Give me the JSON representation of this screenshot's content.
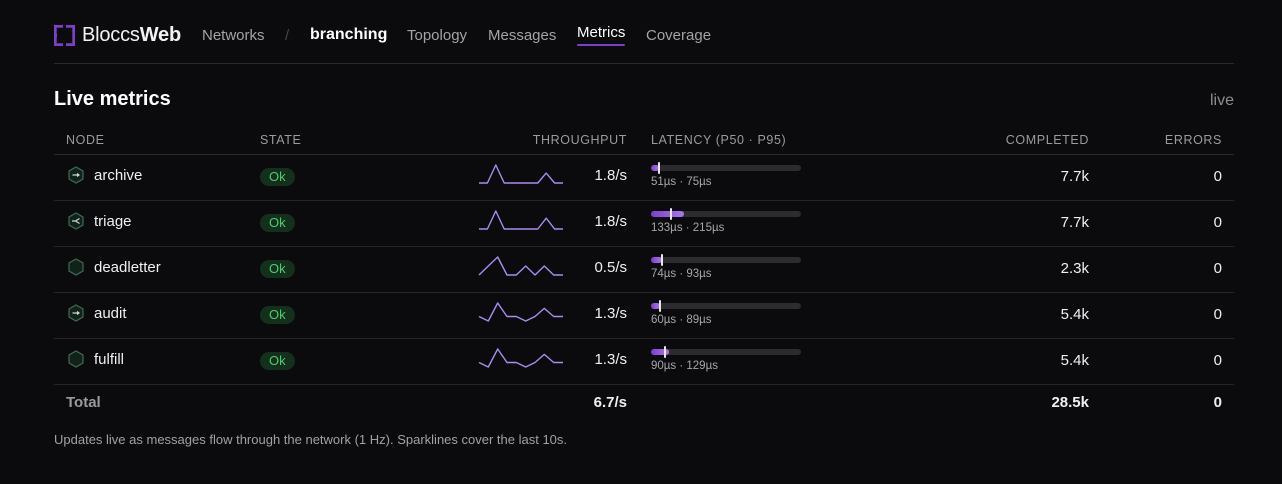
{
  "header": {
    "logo_part1": "Bloccs",
    "logo_part2": "Web",
    "nav": {
      "networks": "Networks",
      "separator": "/",
      "current": "branching",
      "topology": "Topology",
      "messages": "Messages",
      "metrics": "Metrics",
      "coverage": "Coverage"
    },
    "active_tab": "Metrics"
  },
  "section": {
    "title": "Live metrics",
    "status": "live"
  },
  "table": {
    "columns": [
      "NODE",
      "STATE",
      "THROUGHPUT",
      "LATENCY (P50 · P95)",
      "COMPLETED",
      "ERRORS"
    ],
    "rows": [
      {
        "node": "archive",
        "icon": "sink-hex-icon",
        "state": "Ok",
        "throughput": "1.8/s",
        "spark": [
          0,
          0,
          1,
          0,
          0,
          0,
          0,
          0,
          0.55,
          0,
          0
        ],
        "p50_fraction": 0.053,
        "p95_fraction": 0.053,
        "latency": "51µs · 75µs",
        "completed": "7.7k",
        "errors": "0"
      },
      {
        "node": "triage",
        "icon": "router-hex-icon",
        "state": "Ok",
        "throughput": "1.8/s",
        "spark": [
          0,
          0,
          1,
          0,
          0,
          0,
          0,
          0,
          0.6,
          0,
          0
        ],
        "p50_fraction": 0.133,
        "p95_fraction": 0.22,
        "latency": "133µs · 215µs",
        "completed": "7.7k",
        "errors": "0"
      },
      {
        "node": "deadletter",
        "icon": "plain-hex-icon",
        "state": "Ok",
        "throughput": "0.5/s",
        "spark": [
          0,
          0.5,
          1,
          0,
          0,
          0.5,
          0,
          0.5,
          0,
          0
        ],
        "p50_fraction": 0.073,
        "p95_fraction": 0.073,
        "latency": "74µs · 93µs",
        "completed": "2.3k",
        "errors": "0"
      },
      {
        "node": "audit",
        "icon": "sink-hex-icon",
        "state": "Ok",
        "throughput": "1.3/s",
        "spark": [
          0.25,
          0,
          1,
          0.25,
          0.25,
          0,
          0.25,
          0.7,
          0.25,
          0.25
        ],
        "p50_fraction": 0.06,
        "p95_fraction": 0.06,
        "latency": "60µs · 89µs",
        "completed": "5.4k",
        "errors": "0"
      },
      {
        "node": "fulfill",
        "icon": "plain-hex-icon",
        "state": "Ok",
        "throughput": "1.3/s",
        "spark": [
          0.25,
          0,
          1,
          0.25,
          0.25,
          0,
          0.25,
          0.7,
          0.25,
          0.25
        ],
        "p50_fraction": 0.093,
        "p95_fraction": 0.12,
        "latency": "90µs · 129µs",
        "completed": "5.4k",
        "errors": "0"
      }
    ],
    "total": {
      "label": "Total",
      "throughput": "6.7/s",
      "completed": "28.5k",
      "errors": "0"
    }
  },
  "footnote": "Updates live as messages flow through the network (1 Hz). Sparklines cover the last 10s.",
  "colors": {
    "accent": "#7b3fc9",
    "accent_light": "#a977f0",
    "ok_text": "#4fcb6e",
    "ok_bg": "#14301c",
    "spark": "#a98cf2"
  }
}
